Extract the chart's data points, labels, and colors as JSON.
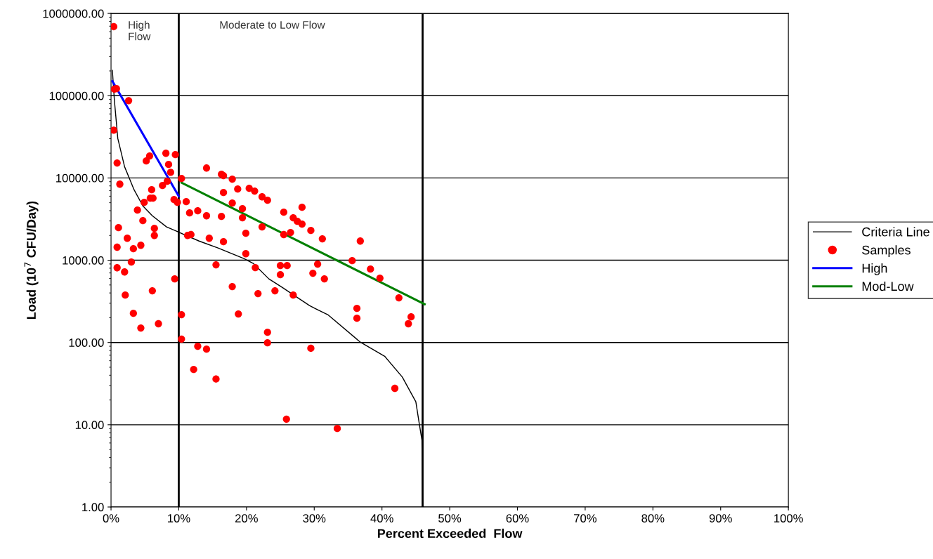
{
  "chart_data": {
    "type": "line",
    "xlabel": "Percent Exceeded  Flow",
    "ylabel": "Load (10$^{7}$ CFU/Day)",
    "log": "y",
    "grid": "y",
    "legend": "right",
    "xlim": [
      0,
      100
    ],
    "ylim": [
      1,
      1000000
    ],
    "xticks": [
      {
        "value": 0,
        "label": "0%"
      },
      {
        "value": 10,
        "label": "10%"
      },
      {
        "value": 20,
        "label": "20%"
      },
      {
        "value": 30,
        "label": "30%"
      },
      {
        "value": 40,
        "label": "40%"
      },
      {
        "value": 50,
        "label": "50%"
      },
      {
        "value": 60,
        "label": "60%"
      },
      {
        "value": 70,
        "label": "70%"
      },
      {
        "value": 80,
        "label": "80%"
      },
      {
        "value": 90,
        "label": "90%"
      },
      {
        "value": 100,
        "label": "100%"
      }
    ],
    "yticks": [
      {
        "value": 1,
        "label": "1.00"
      },
      {
        "value": 10,
        "label": "10.00"
      },
      {
        "value": 100,
        "label": "100.00"
      },
      {
        "value": 1000,
        "label": "1000.00"
      },
      {
        "value": 10000,
        "label": "10000.00"
      },
      {
        "value": 100000,
        "label": "100000.00"
      },
      {
        "value": 1000000,
        "label": "1000000.00"
      }
    ],
    "ref_lines": [
      {
        "axis": "x",
        "value": 10,
        "color": "#000000"
      },
      {
        "axis": "x",
        "value": 46,
        "color": "#000000"
      }
    ],
    "annotations": [
      "High\nFlow",
      "Moderate to Low Flow"
    ],
    "series": [
      {
        "name": "Criteria Line",
        "color": "#000000",
        "marker": "none",
        "x": [
          0.2,
          0.5,
          1.0,
          2.0,
          3.4,
          4.7,
          6.1,
          8.2,
          9.9,
          13.0,
          15.8,
          19.6,
          21.0,
          23.3,
          25.1,
          29.3,
          30.3,
          32.0,
          36.8,
          40.4,
          43.0,
          45.0,
          45.5,
          45.9,
          46.0
        ],
        "values": [
          203000,
          87000,
          30200,
          13700,
          7190,
          4570,
          3470,
          2540,
          2210,
          1710,
          1410,
          1050,
          914,
          593,
          478,
          281,
          255,
          218,
          101,
          68,
          38,
          19,
          10.4,
          6.5,
          1
        ]
      },
      {
        "name": "Samples",
        "type": "scatter",
        "color": "#ff0000",
        "marker": "circle",
        "x": [
          0.4,
          0.5,
          0.8,
          2.6,
          0.4,
          0.9,
          1.3,
          1.1,
          0.9,
          0.9,
          2.0,
          2.4,
          2.1,
          3.0,
          3.3,
          3.3,
          3.9,
          4.4,
          4.4,
          4.9,
          4.7,
          5.2,
          5.7,
          6.0,
          5.8,
          6.2,
          6.4,
          6.4,
          6.1,
          7.0,
          8.1,
          8.5,
          8.8,
          7.6,
          8.3,
          9.5,
          9.3,
          9.8,
          9.4,
          10.4,
          10.4,
          10.4,
          11.1,
          11.3,
          11.8,
          11.6,
          12.8,
          12.2,
          12.8,
          14.1,
          14.1,
          14.5,
          14.1,
          15.5,
          15.5,
          16.3,
          16.6,
          17.9,
          16.6,
          18.7,
          17.9,
          20.4,
          21.2,
          22.3,
          23.1,
          19.4,
          19.4,
          16.3,
          22.3,
          19.9,
          16.6,
          19.9,
          25.5,
          28.2,
          26.9,
          27.5,
          28.2,
          29.5,
          25.5,
          26.5,
          21.3,
          25.0,
          26.0,
          25.0,
          29.8,
          17.9,
          21.7,
          24.2,
          26.9,
          18.8,
          23.1,
          23.1,
          29.5,
          25.9,
          31.2,
          36.8,
          30.5,
          31.5,
          35.6,
          38.3,
          39.7,
          42.5,
          36.3,
          36.3,
          44.3,
          43.9,
          41.9,
          33.4
        ],
        "values": [
          690000,
          120000,
          122000,
          87000,
          38000,
          15200,
          8400,
          2490,
          1440,
          810,
          720,
          1850,
          377,
          950,
          1380,
          226,
          4070,
          150,
          1520,
          5050,
          3030,
          16100,
          18500,
          7190,
          5680,
          5680,
          2440,
          2000,
          425,
          169,
          19950,
          14600,
          11700,
          8090,
          9100,
          19200,
          5460,
          5050,
          593,
          9850,
          218,
          110,
          5150,
          2000,
          2050,
          3760,
          3990,
          47,
          90,
          13200,
          3470,
          1850,
          83,
          36,
          880,
          11070,
          10650,
          9660,
          6650,
          7330,
          4950,
          7480,
          6920,
          5900,
          5350,
          4230,
          3280,
          3410,
          2540,
          2130,
          1680,
          1200,
          3830,
          4400,
          3280,
          2970,
          2750,
          2300,
          2050,
          2170,
          813,
          861,
          861,
          667,
          694,
          478,
          393,
          425,
          377,
          222,
          133,
          99,
          85,
          11.7,
          1820,
          1710,
          896,
          593,
          988,
          780,
          605,
          349,
          260,
          197,
          205,
          169,
          27.7,
          9.0
        ]
      },
      {
        "name": "High",
        "color": "#0000ff",
        "marker": "none",
        "x": [
          0.2,
          10.0
        ],
        "values": [
          150000,
          6000
        ]
      },
      {
        "name": "Mod-Low",
        "color": "#008000",
        "marker": "none",
        "x": [
          10.4,
          46.3
        ],
        "values": [
          8750,
          292
        ]
      }
    ]
  }
}
